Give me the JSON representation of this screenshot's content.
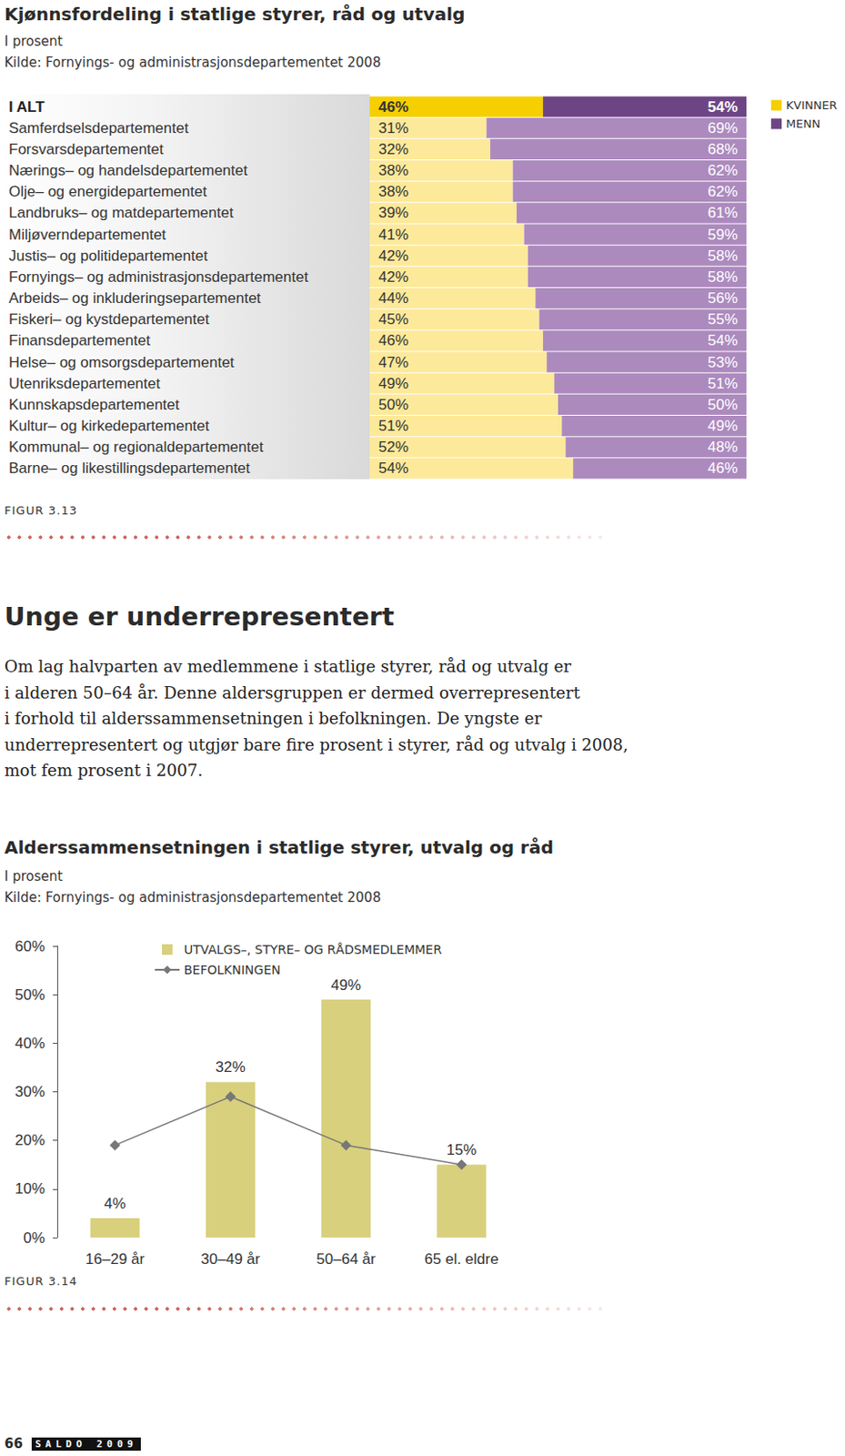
{
  "chart_data": [
    {
      "type": "bar",
      "title": "Kjønnsfordeling i statlige styrer, råd og utvalg",
      "subtitle": "I prosent",
      "source": "Kilde: Fornyings- og administrasjonsdepartementet 2008",
      "figure_label": "FIGUR 3.13",
      "orientation": "horizontal",
      "stacked": true,
      "data_labels": true,
      "tick_labels": "y",
      "legend": "top-right",
      "grid": false,
      "xlim": [
        0,
        100
      ],
      "categories": [
        "I ALT",
        "Samferdselsdepartementet",
        "Forsvarsdepartementet",
        "Nærings– og handelsdepartementet",
        "Olje– og energidepartementet",
        "Landbruks– og matdepartementet",
        "Miljøverndepartementet",
        "Justis– og politidepartementet",
        "Fornyings– og administrasjonsdepartementet",
        "Arbeids– og inkluderingsepartementet",
        "Fiskeri– og kystdepartementet",
        "Finansdepartementet",
        "Helse– og omsorgsdepartementet",
        "Utenriksdepartementet",
        "Kunnskapsdepartementet",
        "Kultur– og kirkedepartementet",
        "Kommunal– og regionaldepartementet",
        "Barne– og likestillingsdepartementet"
      ],
      "series": [
        {
          "name": "KVINNER",
          "color": "#f5cf00",
          "colors": [
            "#f5cf00",
            "#fde99a",
            "#fde99a",
            "#fde99a",
            "#fde99a",
            "#fde99a",
            "#fde99a",
            "#fde99a",
            "#fde99a",
            "#fde99a",
            "#fde99a",
            "#fde99a",
            "#fde99a",
            "#fde99a",
            "#fde99a",
            "#fde99a",
            "#fde99a",
            "#fde99a"
          ],
          "values": [
            46,
            31,
            32,
            38,
            38,
            39,
            41,
            42,
            42,
            44,
            45,
            46,
            47,
            49,
            50,
            51,
            52,
            54
          ],
          "value_labels": [
            "46%",
            "31%",
            "32%",
            "38%",
            "38%",
            "39%",
            "41%",
            "42%",
            "42%",
            "44%",
            "45%",
            "46%",
            "47%",
            "49%",
            "50%",
            "51%",
            "52%",
            "54%"
          ]
        },
        {
          "name": "MENN",
          "color": "#6d4585",
          "colors": [
            "#6d4585",
            "#ac8abe",
            "#ac8abe",
            "#ac8abe",
            "#ac8abe",
            "#ac8abe",
            "#ac8abe",
            "#ac8abe",
            "#ac8abe",
            "#ac8abe",
            "#ac8abe",
            "#ac8abe",
            "#ac8abe",
            "#ac8abe",
            "#ac8abe",
            "#ac8abe",
            "#ac8abe",
            "#ac8abe"
          ],
          "values": [
            54,
            69,
            68,
            62,
            62,
            61,
            59,
            58,
            58,
            56,
            55,
            54,
            53,
            51,
            50,
            49,
            48,
            46
          ],
          "value_labels": [
            "54%",
            "69%",
            "68%",
            "62%",
            "62%",
            "61%",
            "59%",
            "58%",
            "58%",
            "56%",
            "55%",
            "54%",
            "53%",
            "51%",
            "50%",
            "49%",
            "48%",
            "46%"
          ]
        }
      ]
    },
    {
      "type": "bar",
      "title": "Alderssammensetningen i statlige styrer, utvalg og råd",
      "subtitle": "I prosent",
      "source": "Kilde: Fornyings- og administrasjonsdepartementet 2008",
      "figure_label": "FIGUR 3.14",
      "legend": "top-left",
      "grid": false,
      "categories": [
        "16–29 år",
        "30–49 år",
        "50–64 år",
        "65 el. eldre"
      ],
      "ylim": [
        0,
        60
      ],
      "yticks": [
        {
          "value": 0,
          "label": "0%"
        },
        {
          "value": 10,
          "label": "10%"
        },
        {
          "value": 20,
          "label": "20%"
        },
        {
          "value": 30,
          "label": "30%"
        },
        {
          "value": 40,
          "label": "40%"
        },
        {
          "value": 50,
          "label": "50%"
        },
        {
          "value": 60,
          "label": "60%"
        }
      ],
      "series": [
        {
          "name": "UTVALGS–, STYRE– OG RÅDSMEDLEMMER",
          "type": "bar",
          "color": "#d8d07c",
          "values": [
            4,
            32,
            49,
            15
          ],
          "value_labels": [
            "4%",
            "32%",
            "49%",
            "15%"
          ],
          "data_labels": true
        },
        {
          "name": "BEFOLKNINGEN",
          "type": "line",
          "color": "#777777",
          "marker": "diamond",
          "line_style": "solid",
          "values": [
            19,
            29,
            19,
            15
          ],
          "data_labels": false
        }
      ]
    }
  ],
  "document": {
    "heading": "Unge er underrepresentert",
    "body_lines": [
      "Om lag halvparten av medlemmene i statlige styrer, råd og utvalg er",
      "i alderen 50–64 år. Denne aldersgruppen er dermed overrepresentert",
      "i forhold til alderssammensetningen i befolkningen. De yngste er",
      "underrepresentert og utgjør bare fire prosent i styrer, råd og utvalg i 2008,",
      "mot fem prosent i 2007."
    ],
    "page_number": "66",
    "footer": "SALDO 2009"
  }
}
